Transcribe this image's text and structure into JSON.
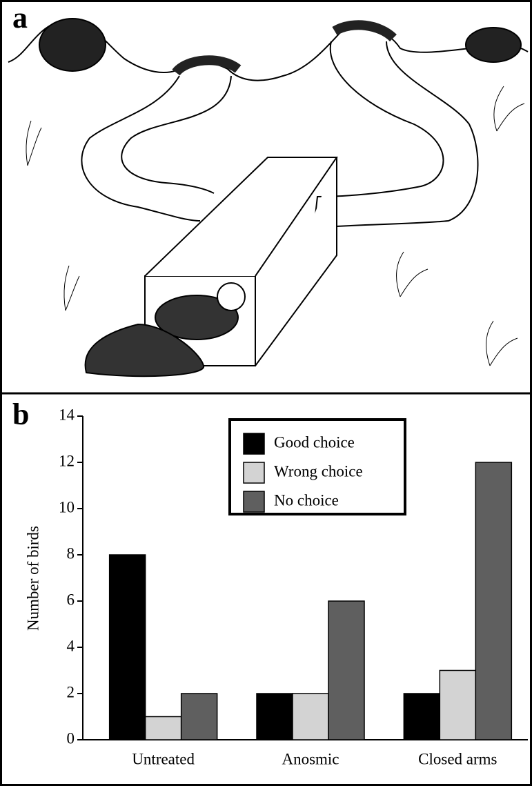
{
  "panel_labels": [
    "a",
    "b"
  ],
  "chart_data": {
    "type": "bar",
    "y_label": "Number of birds",
    "categories": [
      "Untreated",
      "Anosmic",
      "Closed arms"
    ],
    "series": [
      {
        "name": "Good choice",
        "color": "#000000",
        "values": [
          8,
          2,
          2
        ]
      },
      {
        "name": "Wrong choice",
        "color": "#d3d3d3",
        "values": [
          1,
          2,
          3
        ]
      },
      {
        "name": "No choice",
        "color": "#5f5f5f",
        "values": [
          2,
          6,
          12
        ]
      }
    ],
    "ylim": [
      0,
      14
    ],
    "yticks": [
      0,
      2,
      4,
      6,
      8,
      10,
      12,
      14
    ],
    "legend": "top"
  }
}
